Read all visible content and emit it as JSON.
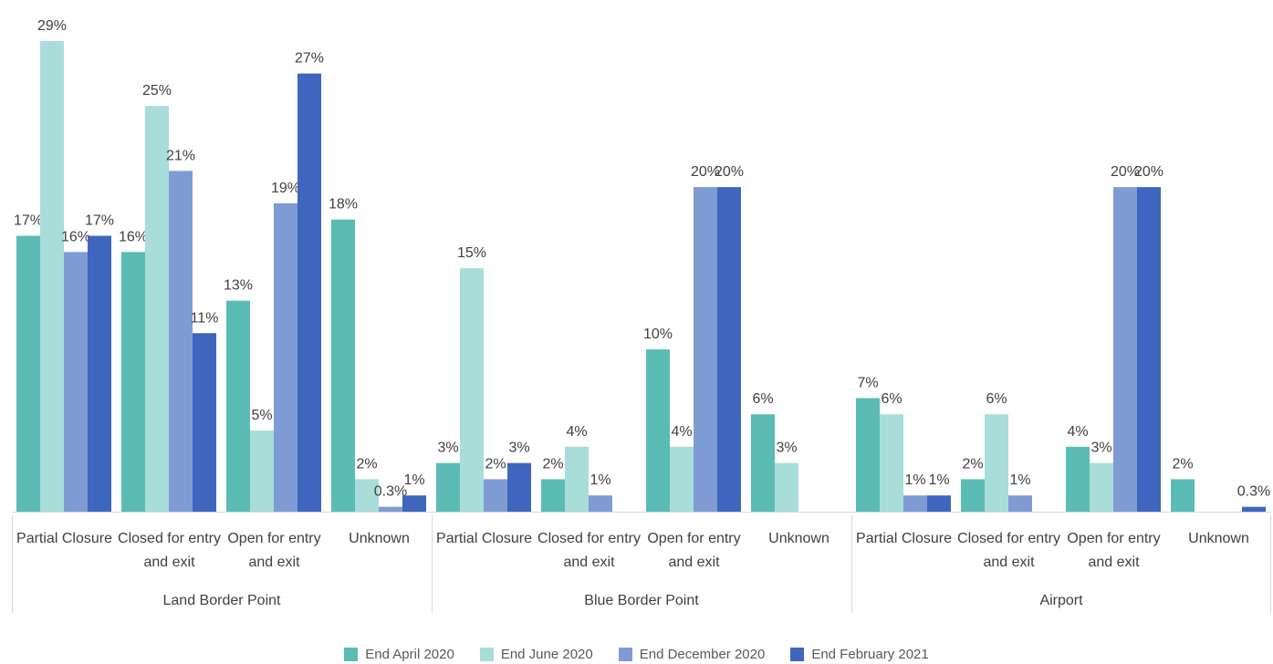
{
  "chart_data": {
    "type": "bar",
    "groups": [
      "Land Border Point",
      "Blue Border Point",
      "Airport"
    ],
    "categories": [
      "Partial Closure",
      "Closed for entry and exit",
      "Open for entry and exit",
      "Unknown",
      "Partial Closure",
      "Closed for entry and exit",
      "Open for entry and exit",
      "Unknown",
      "Partial Closure",
      "Closed for entry and exit",
      "Open for entry and exit",
      "Unknown"
    ],
    "series": [
      {
        "name": "End April 2020",
        "color": "#5bbcb5",
        "values": [
          17,
          16,
          13,
          18,
          3,
          2,
          10,
          6,
          7,
          2,
          4,
          2
        ],
        "value_labels": [
          "17%",
          "16%",
          "13%",
          "18%",
          "3%",
          "2%",
          "10%",
          "6%",
          "7%",
          "2%",
          "4%",
          "2%"
        ]
      },
      {
        "name": "End June 2020",
        "color": "#a8ddd9",
        "values": [
          29,
          25,
          5,
          2,
          15,
          4,
          4,
          3,
          6,
          6,
          3,
          null
        ],
        "value_labels": [
          "29%",
          "25%",
          "5%",
          "2%",
          "15%",
          "4%",
          "4%",
          "3%",
          "6%",
          "6%",
          "3%",
          null
        ]
      },
      {
        "name": "End December 2020",
        "color": "#7f9bd4",
        "values": [
          16,
          21,
          19,
          0.3,
          2,
          1,
          20,
          null,
          1,
          1,
          20,
          null
        ],
        "value_labels": [
          "16%",
          "21%",
          "19%",
          "0.3%",
          "2%",
          "1%",
          "20%",
          null,
          "1%",
          "1%",
          "20%",
          null
        ]
      },
      {
        "name": "End February 2021",
        "color": "#3f66bf",
        "values": [
          17,
          11,
          27,
          1,
          3,
          null,
          20,
          null,
          1,
          null,
          20,
          0.3
        ],
        "value_labels": [
          "17%",
          "11%",
          "27%",
          "1%",
          "3%",
          null,
          "20%",
          null,
          "1%",
          null,
          "20%",
          "0.3%"
        ]
      }
    ]
  }
}
